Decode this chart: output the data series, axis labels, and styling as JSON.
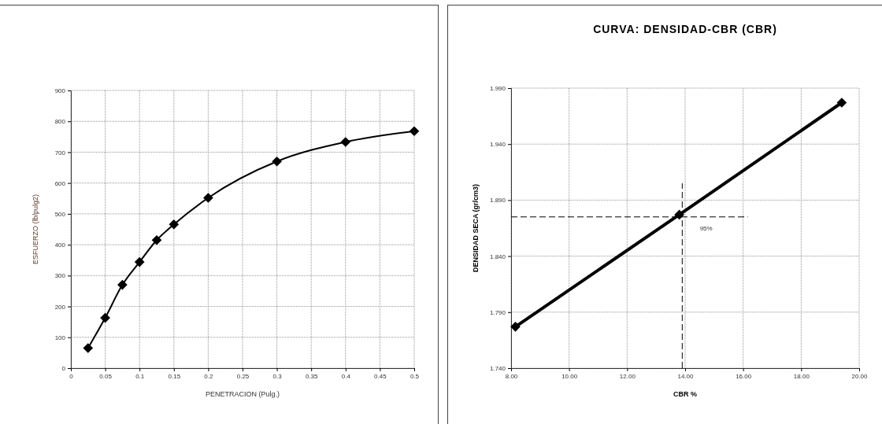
{
  "chart_data": [
    {
      "type": "line",
      "xlabel": "PENETRACION (Pulg.)",
      "ylabel": "ESFUERZO (lb/pulg2)",
      "x": [
        0.025,
        0.05,
        0.075,
        0.1,
        0.125,
        0.15,
        0.2,
        0.3,
        0.4,
        0.5
      ],
      "series": [
        {
          "color": "#000000",
          "values": [
            65,
            163,
            270,
            344,
            415,
            466,
            552,
            670,
            733,
            768
          ]
        }
      ],
      "xlim": [
        0,
        0.5
      ],
      "xticks": [
        0,
        0.05,
        0.1,
        0.15,
        0.2,
        0.25,
        0.3,
        0.35,
        0.4,
        0.45,
        0.5
      ],
      "ylim": [
        0,
        900
      ],
      "yticks": [
        0,
        100,
        200,
        300,
        400,
        500,
        600,
        700,
        800,
        900
      ],
      "grid": true,
      "marker": "diamond",
      "line_style": "solid"
    },
    {
      "type": "line",
      "title": "CURVA: DENSIDAD-CBR (CBR)",
      "xlabel": "CBR %",
      "ylabel": "DENSIDAD SECA (gr/cm3)",
      "x": [
        8.15,
        13.8,
        19.4
      ],
      "series": [
        {
          "color": "#000000",
          "values": [
            1.777,
            1.877,
            1.977
          ]
        }
      ],
      "xlim": [
        8,
        20
      ],
      "xticks": [
        {
          "value": 8,
          "label": "8.00"
        },
        {
          "value": 10,
          "label": "10.00"
        },
        {
          "value": 12,
          "label": "12.00"
        },
        {
          "value": 14,
          "label": "14.00"
        },
        {
          "value": 16,
          "label": "16.00"
        },
        {
          "value": 18,
          "label": "18.00"
        },
        {
          "value": 20,
          "label": "20.00"
        }
      ],
      "ylim": [
        1.74,
        1.99
      ],
      "yticks": [
        {
          "value": 1.74,
          "label": "1.740"
        },
        {
          "value": 1.79,
          "label": "1.790"
        },
        {
          "value": 1.84,
          "label": "1.840"
        },
        {
          "value": 1.89,
          "label": "1.890"
        },
        {
          "value": 1.94,
          "label": "1.940"
        },
        {
          "value": 1.99,
          "label": "1.990"
        }
      ],
      "annotations": [
        "95%"
      ],
      "ref_lines": [
        {
          "axis": "y",
          "value": 1.875,
          "color": "#000000",
          "line_style": "dashed"
        },
        {
          "axis": "x",
          "value": 13.9,
          "color": "#000000",
          "line_style": "dashed"
        }
      ],
      "grid": true,
      "marker": "diamond",
      "line_style": "solid"
    }
  ]
}
